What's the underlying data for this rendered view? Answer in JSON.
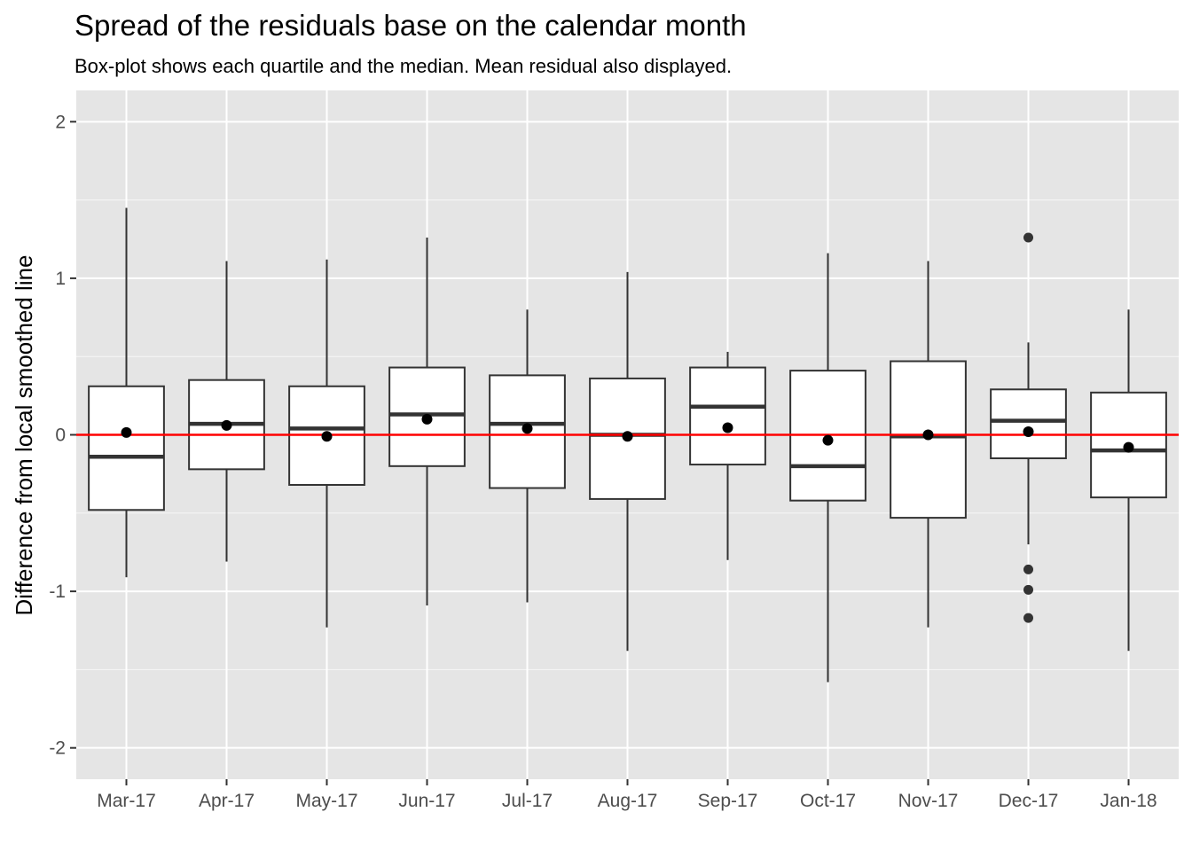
{
  "chart_data": {
    "type": "box",
    "title": "Spread of the residuals base on the calendar month",
    "subtitle": "Box-plot shows each quartile and the median. Mean residual also displayed.",
    "xlabel": "",
    "ylabel": "Difference from local smoothed line",
    "ylim": [
      -2.2,
      2.2
    ],
    "y_ticks": [
      -2,
      -1,
      0,
      1,
      2
    ],
    "y_tick_labels": [
      "-2",
      "-1",
      "0",
      "1",
      "2"
    ],
    "grid": true,
    "reference_line": {
      "y": 0,
      "color": "#ff0000"
    },
    "categories": [
      "Mar-17",
      "Apr-17",
      "May-17",
      "Jun-17",
      "Jul-17",
      "Aug-17",
      "Sep-17",
      "Oct-17",
      "Nov-17",
      "Dec-17",
      "Jan-18"
    ],
    "boxes": [
      {
        "min": -0.91,
        "q1": -0.48,
        "median": -0.14,
        "q3": 0.31,
        "max": 1.45,
        "mean": 0.015,
        "outliers": []
      },
      {
        "min": -0.81,
        "q1": -0.22,
        "median": 0.07,
        "q3": 0.35,
        "max": 1.11,
        "mean": 0.06,
        "outliers": []
      },
      {
        "min": -1.23,
        "q1": -0.32,
        "median": 0.04,
        "q3": 0.31,
        "max": 1.12,
        "mean": -0.01,
        "outliers": []
      },
      {
        "min": -1.09,
        "q1": -0.2,
        "median": 0.13,
        "q3": 0.43,
        "max": 1.26,
        "mean": 0.1,
        "outliers": []
      },
      {
        "min": -1.07,
        "q1": -0.34,
        "median": 0.07,
        "q3": 0.38,
        "max": 0.8,
        "mean": 0.04,
        "outliers": []
      },
      {
        "min": -1.38,
        "q1": -0.41,
        "median": 0.0,
        "q3": 0.36,
        "max": 1.04,
        "mean": -0.01,
        "outliers": []
      },
      {
        "min": -0.8,
        "q1": -0.19,
        "median": 0.18,
        "q3": 0.43,
        "max": 0.53,
        "mean": 0.045,
        "outliers": []
      },
      {
        "min": -1.58,
        "q1": -0.42,
        "median": -0.2,
        "q3": 0.41,
        "max": 1.16,
        "mean": -0.035,
        "outliers": []
      },
      {
        "min": -1.23,
        "q1": -0.53,
        "median": -0.01,
        "q3": 0.47,
        "max": 1.11,
        "mean": 0.0,
        "outliers": []
      },
      {
        "min": -0.7,
        "q1": -0.15,
        "median": 0.09,
        "q3": 0.29,
        "max": 0.59,
        "mean": 0.02,
        "outliers": [
          1.26,
          -0.86,
          -0.99,
          -1.17
        ]
      },
      {
        "min": -1.38,
        "q1": -0.4,
        "median": -0.1,
        "q3": 0.27,
        "max": 0.8,
        "mean": -0.08,
        "outliers": []
      }
    ],
    "colors": {
      "panel": "#e5e5e5",
      "grid_major": "#ffffff",
      "box_fill": "#ffffff",
      "box_line": "#333333",
      "reference": "#ff0000",
      "points": "#000000"
    }
  }
}
